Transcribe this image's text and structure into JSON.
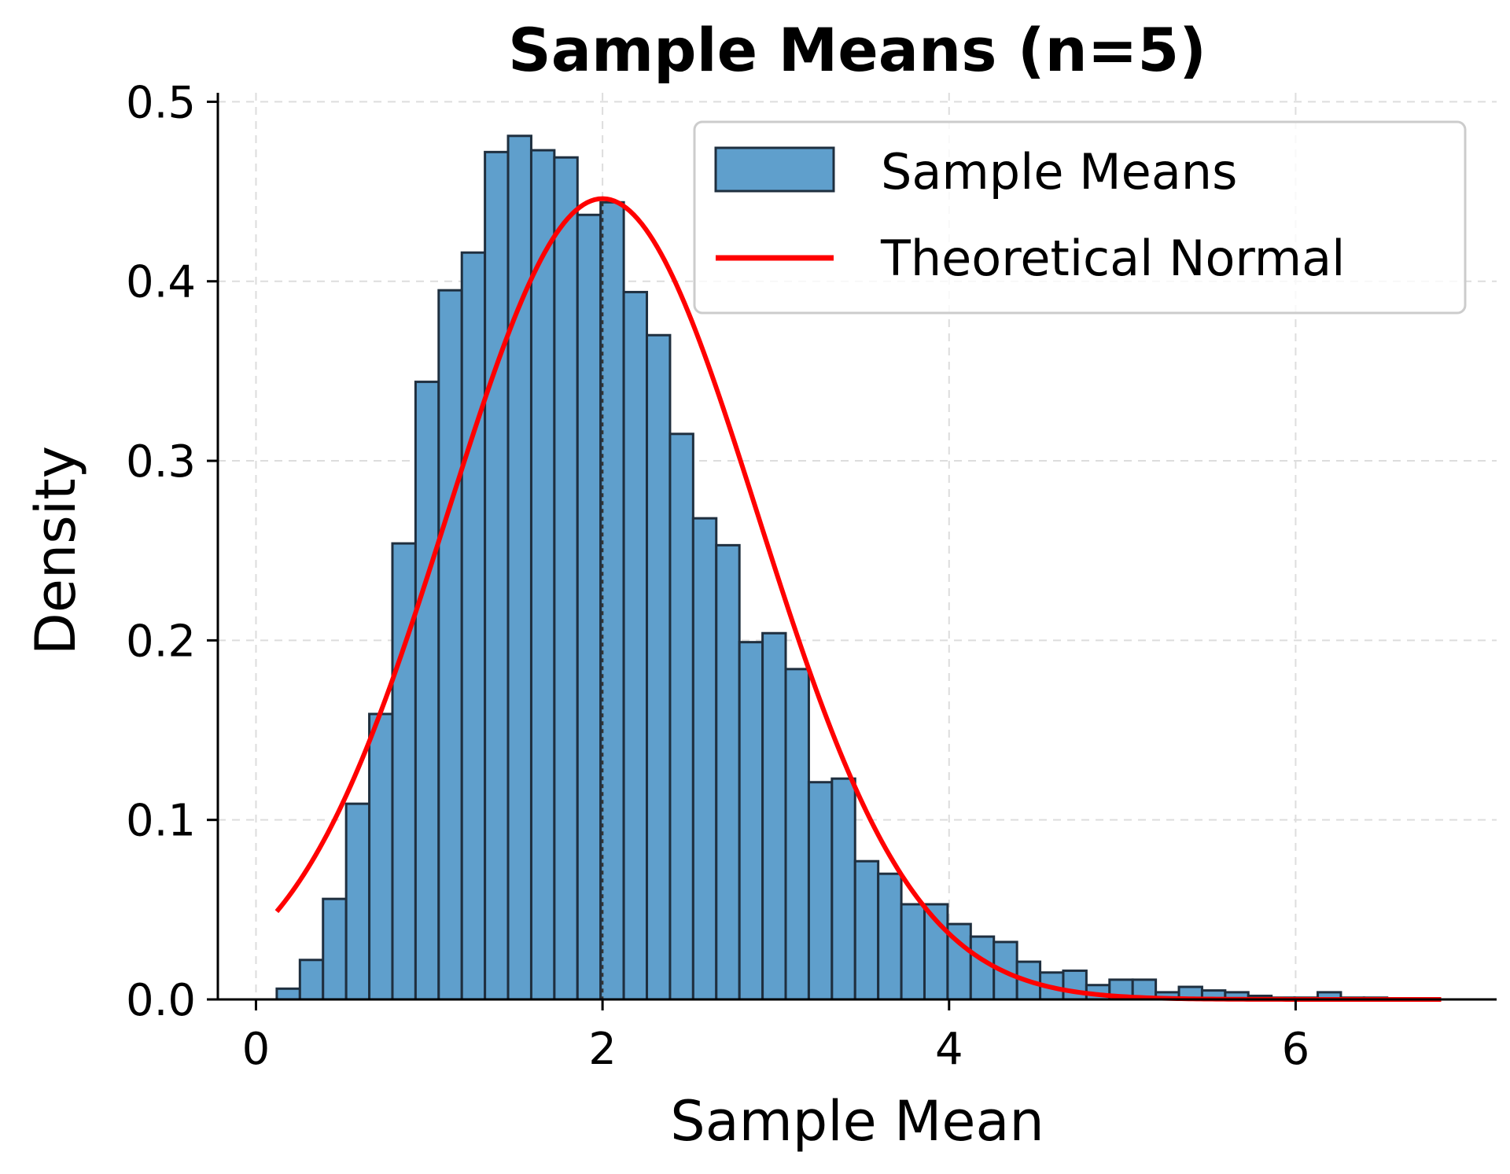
{
  "chart_data": {
    "type": "bar",
    "title": "Sample Means (n=5)",
    "xlabel": "Sample Mean",
    "ylabel": "Density",
    "xlim": [
      -0.22,
      7.16
    ],
    "ylim": [
      0,
      0.505
    ],
    "xticks": [
      0,
      2,
      4,
      6
    ],
    "yticks": [
      0.0,
      0.1,
      0.2,
      0.3,
      0.4,
      0.5
    ],
    "xtick_labels": [
      "0",
      "2",
      "4",
      "6"
    ],
    "ytick_labels": [
      "0.0",
      "0.1",
      "0.2",
      "0.3",
      "0.4",
      "0.5"
    ],
    "grid": true,
    "legend_position": "top-right",
    "mean_line_x": 2.0,
    "histogram": {
      "name": "Sample Means",
      "color": "#5f9fcc",
      "edge_color": "#1f2f3f",
      "bin_start": 0.12,
      "bin_width": 0.1335,
      "values": [
        0.006,
        0.022,
        0.056,
        0.109,
        0.159,
        0.254,
        0.344,
        0.395,
        0.416,
        0.472,
        0.481,
        0.473,
        0.469,
        0.437,
        0.444,
        0.394,
        0.37,
        0.315,
        0.268,
        0.253,
        0.199,
        0.204,
        0.184,
        0.121,
        0.123,
        0.077,
        0.07,
        0.053,
        0.053,
        0.042,
        0.035,
        0.032,
        0.021,
        0.015,
        0.016,
        0.008,
        0.011,
        0.011,
        0.004,
        0.007,
        0.005,
        0.004,
        0.002,
        0.001,
        0.001,
        0.004,
        0.001,
        0.001,
        0.0,
        0.0
      ]
    },
    "normal_curve": {
      "name": "Theoretical Normal",
      "color": "#ff0000",
      "mean": 2.0,
      "sd": 0.8944,
      "x_start": 0.12,
      "x_end": 6.84
    }
  }
}
